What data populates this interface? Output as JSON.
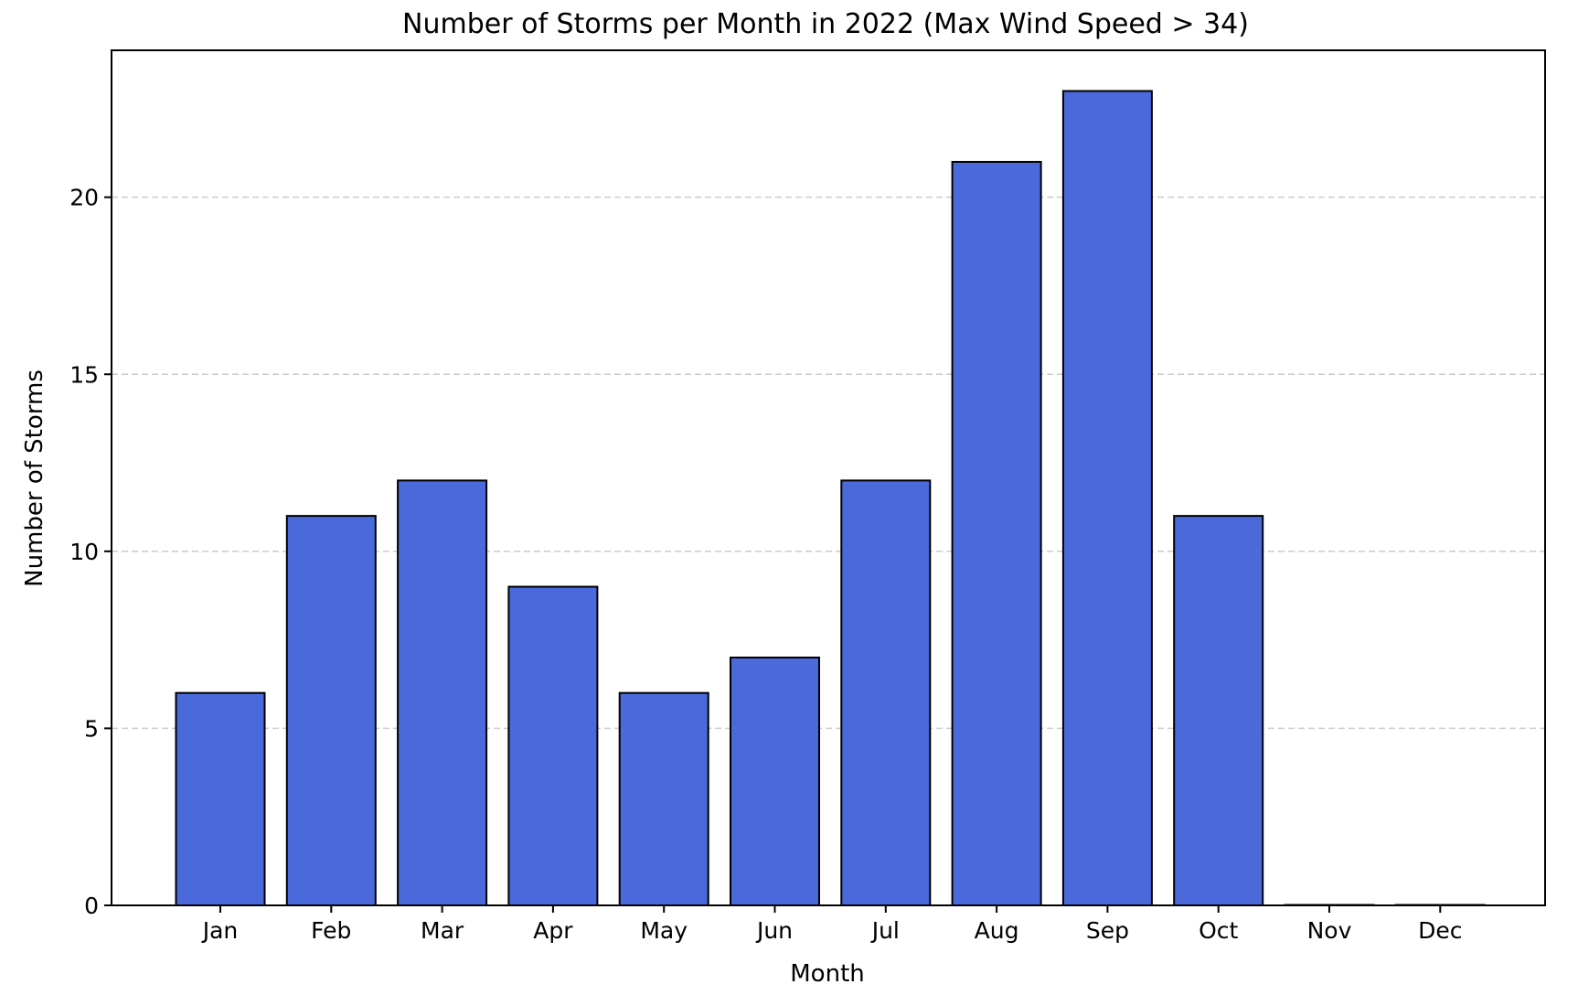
{
  "chart_data": {
    "type": "bar",
    "title": "Number of Storms per Month in 2022 (Max Wind Speed > 34)",
    "xlabel": "Month",
    "ylabel": "Number of Storms",
    "categories": [
      "Jan",
      "Feb",
      "Mar",
      "Apr",
      "May",
      "Jun",
      "Jul",
      "Aug",
      "Sep",
      "Oct",
      "Nov",
      "Dec"
    ],
    "values": [
      6,
      11,
      12,
      9,
      6,
      7,
      12,
      21,
      23,
      11,
      0,
      0
    ],
    "ylim": [
      0,
      24.15
    ],
    "yticks": [
      0,
      5,
      10,
      15,
      20
    ],
    "grid": {
      "axis": "y",
      "style": "dashed"
    },
    "colors": {
      "bar_fill": "#4a69db",
      "bar_edge": "#000000",
      "grid": "#cccccc",
      "axis": "#000000"
    }
  }
}
